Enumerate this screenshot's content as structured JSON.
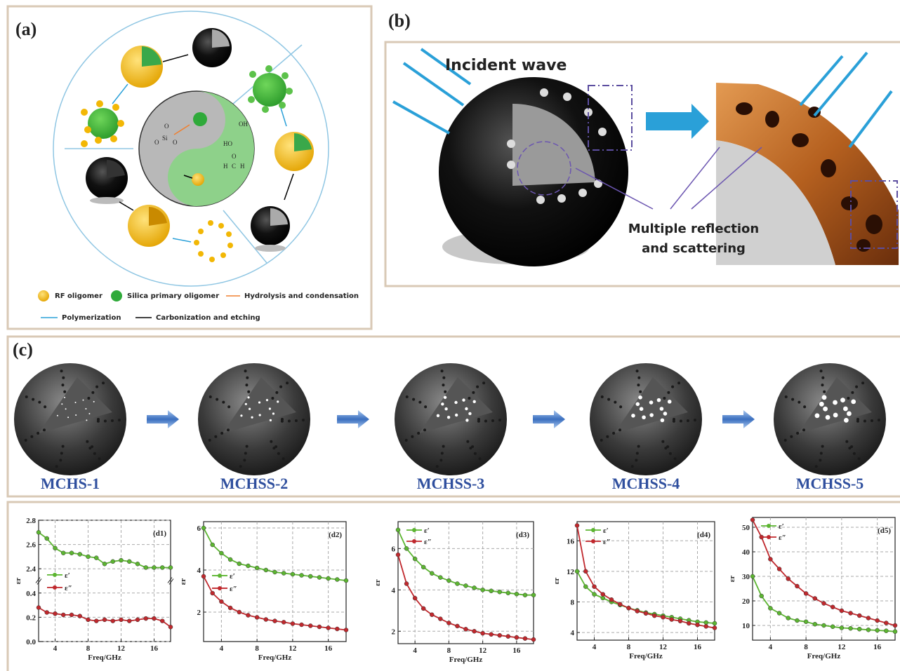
{
  "panels": {
    "a": {
      "label": "(a)",
      "legend": [
        "RF oligomer",
        "Silica primary oligomer",
        "Hydrolysis and condensation",
        "Polymerization",
        "Carbonization and etching"
      ],
      "chemistry": [
        "O",
        "Si",
        "O",
        "O",
        "HO",
        "OH",
        "H",
        "C",
        "H",
        "O"
      ]
    },
    "b": {
      "label": "(b)",
      "incident": "Incident wave",
      "reflection": [
        "Multiple reflection",
        "and scattering"
      ]
    },
    "c": {
      "label": "(c)",
      "samples": [
        "MCHS-1",
        "MCHSS-2",
        "MCHSS-3",
        "MCHSS-4",
        "MCHSS-5"
      ]
    }
  },
  "chart_data": [
    {
      "type": "line",
      "title": "(d1)",
      "x_label": "Freq/GHz",
      "y_label": "εr",
      "x": [
        2,
        3,
        4,
        5,
        6,
        7,
        8,
        9,
        10,
        11,
        12,
        13,
        14,
        15,
        16,
        17,
        18
      ],
      "xlim": [
        2,
        18
      ],
      "xticks": [
        4,
        8,
        12,
        16
      ],
      "ylim": [
        0,
        2.8
      ],
      "ybreak": [
        0.45,
        2.35
      ],
      "yticks": [
        {
          "value": 0,
          "label": "0.0"
        },
        0.2,
        0.4,
        2.4,
        2.6,
        2.8
      ],
      "grid": true,
      "legend": "center left",
      "series": [
        {
          "name": "ε′",
          "color": "#5cb531",
          "values": [
            2.7,
            2.65,
            2.57,
            2.53,
            2.53,
            2.52,
            2.5,
            2.49,
            2.44,
            2.46,
            2.47,
            2.46,
            2.44,
            2.41,
            2.41,
            2.41,
            2.41
          ]
        },
        {
          "name": "ε″",
          "color": "#c0282d",
          "values": [
            0.28,
            0.24,
            0.23,
            0.22,
            0.22,
            0.21,
            0.18,
            0.17,
            0.18,
            0.17,
            0.18,
            0.17,
            0.18,
            0.19,
            0.19,
            0.17,
            0.12
          ]
        }
      ]
    },
    {
      "type": "line",
      "title": "(d2)",
      "x_label": "Freq/GHz",
      "y_label": "εr",
      "x": [
        2,
        3,
        4,
        5,
        6,
        7,
        8,
        9,
        10,
        11,
        12,
        13,
        14,
        15,
        16,
        17,
        18
      ],
      "xlim": [
        2,
        18
      ],
      "xticks": [
        4,
        8,
        12,
        16
      ],
      "ylim": [
        0.6,
        6.3
      ],
      "yticks": [
        2,
        4,
        6
      ],
      "grid": true,
      "legend": "center left",
      "series": [
        {
          "name": "ε′",
          "color": "#5cb531",
          "values": [
            6.0,
            5.2,
            4.8,
            4.5,
            4.3,
            4.2,
            4.1,
            4.0,
            3.9,
            3.85,
            3.8,
            3.75,
            3.7,
            3.65,
            3.6,
            3.55,
            3.5
          ]
        },
        {
          "name": "ε″",
          "color": "#c0282d",
          "values": [
            3.7,
            2.9,
            2.5,
            2.2,
            2.0,
            1.85,
            1.75,
            1.65,
            1.58,
            1.52,
            1.45,
            1.4,
            1.35,
            1.3,
            1.25,
            1.2,
            1.15
          ]
        }
      ]
    },
    {
      "type": "line",
      "title": "(d3)",
      "x_label": "Freq/GHz",
      "y_label": "εr",
      "x": [
        2,
        3,
        4,
        5,
        6,
        7,
        8,
        9,
        10,
        11,
        12,
        13,
        14,
        15,
        16,
        17,
        18
      ],
      "xlim": [
        2,
        18
      ],
      "xticks": [
        4,
        8,
        12,
        16
      ],
      "ylim": [
        1.4,
        7.3
      ],
      "yticks": [
        2,
        4,
        6
      ],
      "grid": true,
      "legend": "upper left",
      "series": [
        {
          "name": "ε′",
          "color": "#5cb531",
          "values": [
            6.9,
            6.0,
            5.5,
            5.1,
            4.8,
            4.6,
            4.45,
            4.3,
            4.2,
            4.1,
            4.0,
            3.95,
            3.9,
            3.85,
            3.8,
            3.75,
            3.75
          ]
        },
        {
          "name": "ε″",
          "color": "#c0282d",
          "values": [
            5.7,
            4.3,
            3.6,
            3.1,
            2.8,
            2.6,
            2.4,
            2.25,
            2.1,
            2.0,
            1.9,
            1.85,
            1.8,
            1.75,
            1.7,
            1.65,
            1.6
          ]
        }
      ]
    },
    {
      "type": "line",
      "title": "(d4)",
      "x_label": "Freq/GHz",
      "y_label": "εr",
      "x": [
        2,
        3,
        4,
        5,
        6,
        7,
        8,
        9,
        10,
        11,
        12,
        13,
        14,
        15,
        16,
        17,
        18
      ],
      "xlim": [
        2,
        18
      ],
      "xticks": [
        4,
        8,
        12,
        16
      ],
      "ylim": [
        3,
        18.5
      ],
      "yticks": [
        4,
        8,
        12,
        16
      ],
      "grid": true,
      "legend": "upper left",
      "series": [
        {
          "name": "ε′",
          "color": "#5cb531",
          "values": [
            12,
            10,
            9,
            8.5,
            8,
            7.6,
            7.2,
            6.9,
            6.6,
            6.4,
            6.2,
            6,
            5.8,
            5.6,
            5.4,
            5.3,
            5.2
          ]
        },
        {
          "name": "ε″",
          "color": "#c0282d",
          "values": [
            18,
            12,
            10,
            9,
            8.3,
            7.7,
            7.2,
            6.8,
            6.5,
            6.2,
            6,
            5.7,
            5.5,
            5.2,
            5,
            4.8,
            4.6
          ]
        }
      ]
    },
    {
      "type": "line",
      "title": "(d5)",
      "x_label": "Freq/GHz",
      "y_label": "εr",
      "x": [
        2,
        3,
        4,
        5,
        6,
        7,
        8,
        9,
        10,
        11,
        12,
        13,
        14,
        15,
        16,
        17,
        18
      ],
      "xlim": [
        2,
        18
      ],
      "xticks": [
        4,
        8,
        12,
        16
      ],
      "ylim": [
        4,
        54
      ],
      "yticks": [
        10,
        20,
        30,
        40,
        50
      ],
      "grid": true,
      "legend": "upper left",
      "series": [
        {
          "name": "ε′",
          "color": "#5cb531",
          "values": [
            30,
            22,
            17,
            15,
            13,
            12,
            11.5,
            10.5,
            10,
            9.5,
            9,
            8.8,
            8.5,
            8.2,
            8,
            7.8,
            7.5
          ]
        },
        {
          "name": "ε″",
          "color": "#c0282d",
          "values": [
            53,
            46,
            37,
            33,
            29,
            26,
            23,
            21,
            19,
            17.5,
            16,
            15,
            14,
            13,
            12,
            11,
            10
          ]
        }
      ]
    }
  ]
}
